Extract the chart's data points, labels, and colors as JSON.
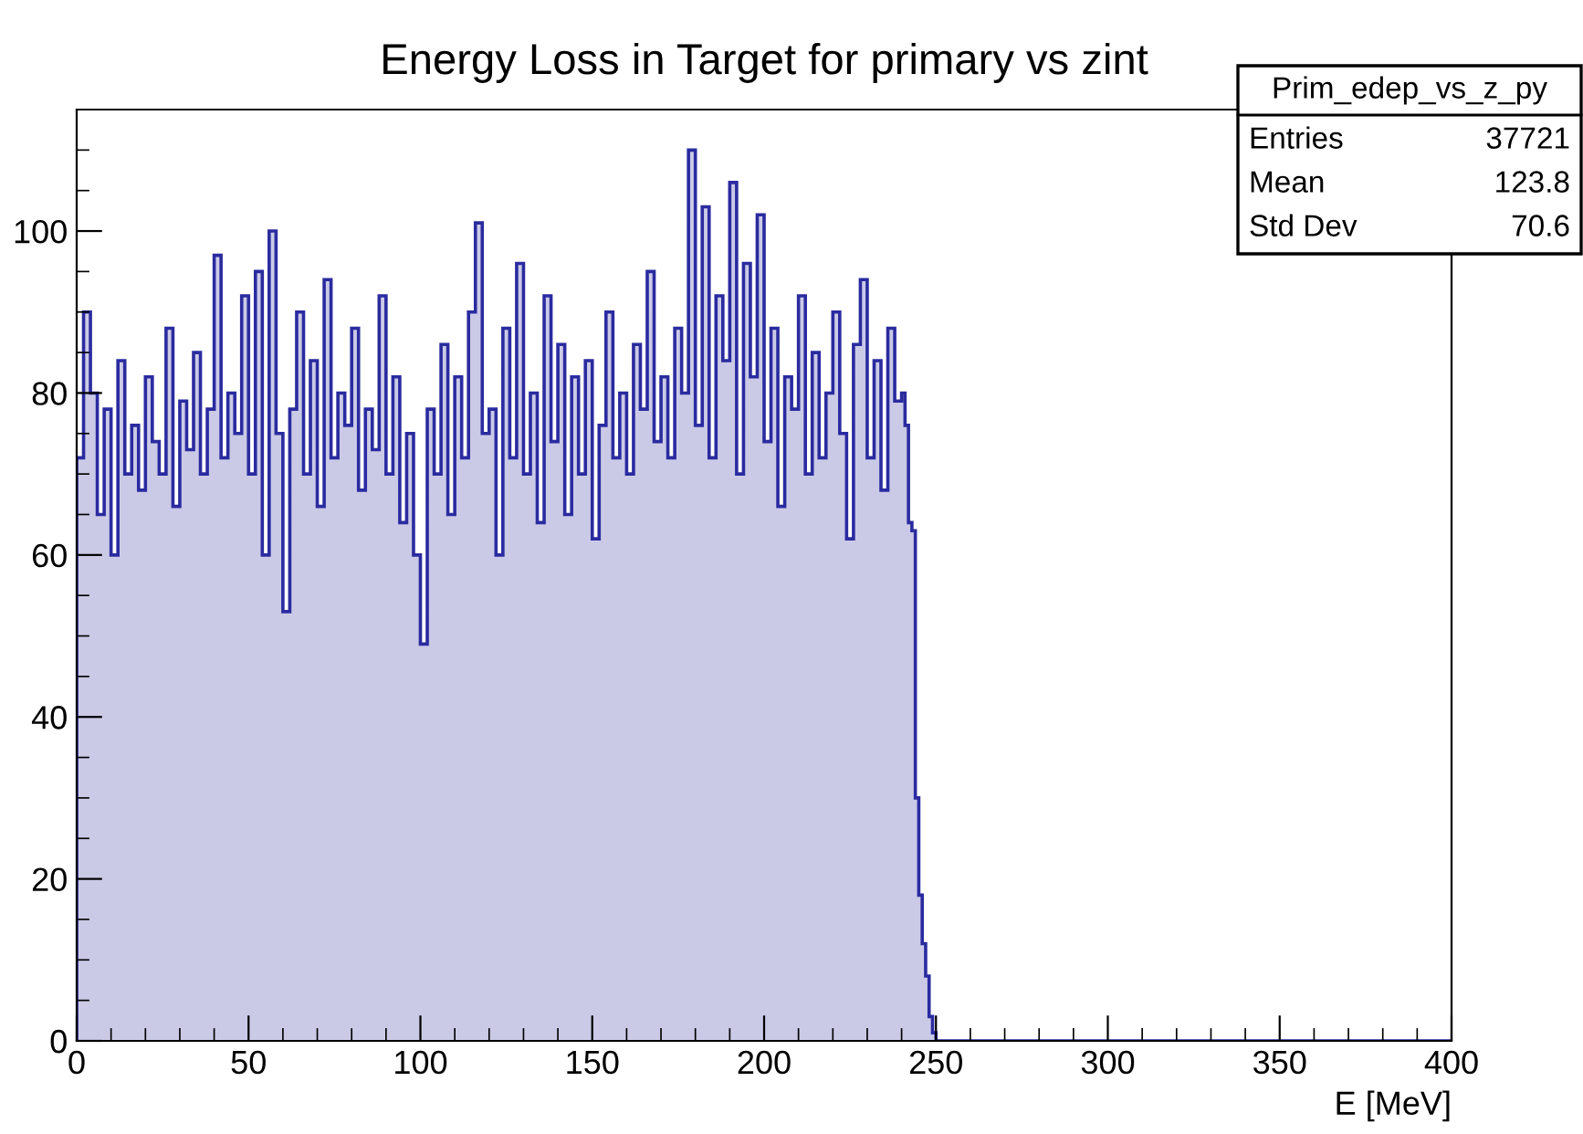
{
  "chart_data": {
    "type": "histogram",
    "title": "Energy Loss in Target for primary vs zint",
    "xlabel": "E [MeV]",
    "bins": [
      0,
      2,
      4,
      6,
      8,
      10,
      12,
      14,
      16,
      18,
      20,
      22,
      24,
      26,
      28,
      30,
      32,
      34,
      36,
      38,
      40,
      42,
      44,
      46,
      48,
      50,
      52,
      54,
      56,
      58,
      60,
      62,
      64,
      66,
      68,
      70,
      72,
      74,
      76,
      78,
      80,
      82,
      84,
      86,
      88,
      90,
      92,
      94,
      96,
      98,
      100,
      102,
      104,
      106,
      108,
      110,
      112,
      114,
      116,
      118,
      120,
      122,
      124,
      126,
      128,
      130,
      132,
      134,
      136,
      138,
      140,
      142,
      144,
      146,
      148,
      150,
      152,
      154,
      156,
      158,
      160,
      162,
      164,
      166,
      168,
      170,
      172,
      174,
      176,
      178,
      180,
      182,
      184,
      186,
      188,
      190,
      192,
      194,
      196,
      198,
      200,
      202,
      204,
      206,
      208,
      210,
      212,
      214,
      216,
      218,
      220,
      222,
      224,
      226,
      228,
      230,
      232,
      234,
      236,
      238,
      240,
      241,
      242,
      243,
      244,
      245,
      246,
      247,
      248,
      249,
      250,
      251,
      252,
      400
    ],
    "values": [
      72,
      90,
      80,
      65,
      78,
      60,
      84,
      70,
      76,
      68,
      82,
      74,
      70,
      88,
      66,
      79,
      73,
      85,
      70,
      78,
      97,
      72,
      80,
      75,
      92,
      70,
      95,
      60,
      100,
      75,
      53,
      78,
      90,
      70,
      84,
      66,
      94,
      72,
      80,
      76,
      88,
      68,
      78,
      73,
      92,
      70,
      82,
      64,
      75,
      60,
      49,
      78,
      70,
      86,
      65,
      82,
      72,
      90,
      101,
      75,
      78,
      60,
      88,
      72,
      96,
      70,
      80,
      64,
      92,
      74,
      86,
      65,
      82,
      70,
      84,
      62,
      76,
      90,
      72,
      80,
      70,
      86,
      78,
      95,
      74,
      82,
      72,
      88,
      80,
      110,
      76,
      103,
      72,
      92,
      84,
      106,
      70,
      96,
      82,
      102,
      74,
      88,
      66,
      82,
      78,
      92,
      70,
      85,
      72,
      80,
      90,
      75,
      62,
      86,
      94,
      72,
      84,
      68,
      88,
      79,
      80,
      76,
      64,
      63,
      30,
      18,
      12,
      8,
      3,
      1,
      0,
      0,
      0
    ],
    "color": "#2b2ba0",
    "xlim": [
      0,
      400
    ],
    "ylim": [
      0,
      115
    ],
    "xticks": [
      0,
      50,
      100,
      150,
      200,
      250,
      300,
      350,
      400
    ],
    "yticks": [
      0,
      20,
      40,
      60,
      80,
      100
    ],
    "grid": false,
    "legend": false,
    "annotations": [
      "Prim_edep_vs_z_py",
      "Entries",
      "37721",
      "Mean",
      "123.8",
      "Std Dev",
      "70.6"
    ]
  }
}
